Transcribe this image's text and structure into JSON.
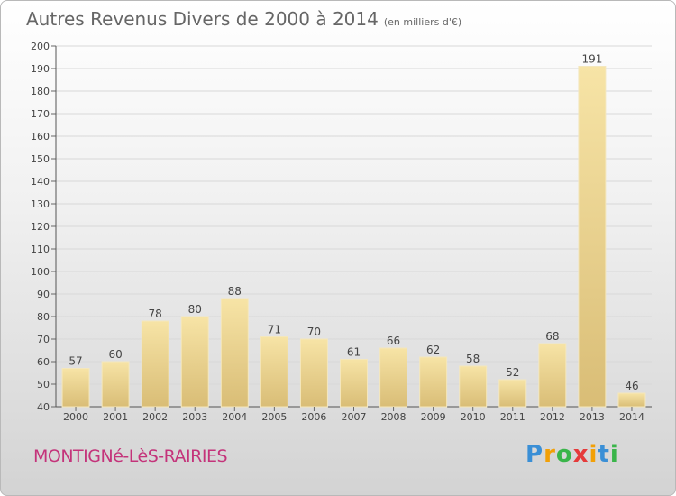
{
  "title": "Autres Revenus Divers de 2000 à 2014",
  "unit": "(en milliers d'€)",
  "commune": "MONTIGNé-LèS-RAIRIES",
  "logo": {
    "letters": [
      "P",
      "r",
      "o",
      "x",
      "i",
      "t",
      "i"
    ],
    "colors": [
      "#3a8fd6",
      "#f2a007",
      "#3ab54a",
      "#e53a3a",
      "#f2a007",
      "#3a8fd6",
      "#3ab54a"
    ]
  },
  "colors": {
    "bar_light": "#f7e4a6",
    "bar_dark": "#d9bd76",
    "grid": "#d8d8d8",
    "commune": "#c4337a"
  },
  "chart_data": {
    "type": "bar",
    "categories": [
      "2000",
      "2001",
      "2002",
      "2003",
      "2004",
      "2005",
      "2006",
      "2007",
      "2008",
      "2009",
      "2010",
      "2011",
      "2012",
      "2013",
      "2014"
    ],
    "values": [
      57,
      60,
      78,
      80,
      88,
      71,
      70,
      61,
      66,
      62,
      58,
      52,
      68,
      191,
      46
    ],
    "ylim": [
      40,
      200
    ],
    "yticks": [
      40,
      50,
      60,
      70,
      80,
      90,
      100,
      110,
      120,
      130,
      140,
      150,
      160,
      170,
      180,
      190,
      200
    ],
    "grid": true,
    "title": "Autres Revenus Divers de 2000 à 2014"
  }
}
